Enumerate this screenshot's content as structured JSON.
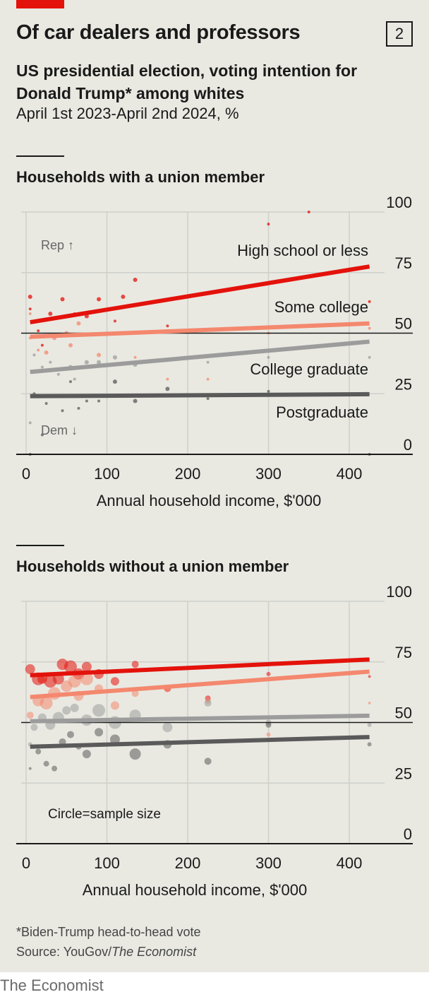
{
  "header": {
    "title": "Of car dealers and professors",
    "chart_number": "2",
    "subtitle": "US presidential election, voting intention for Donald Trump* among whites",
    "subnote": "April 1st 2023-April 2nd 2024, %"
  },
  "footer": {
    "footnote": "*Biden-Trump head-to-head vote",
    "source_prefix": "Source: YouGov/",
    "source_publication": "The Economist",
    "brand": "The Economist"
  },
  "colors": {
    "high_school": "#e3120b",
    "some_college": "#f4886e",
    "college_graduate": "#9c9c9c",
    "postgraduate": "#5a5a5a",
    "grid": "#d0d0cb",
    "axis": "#1a1a1a"
  },
  "chart_data": [
    {
      "type": "scatter",
      "title": "Households with a union member",
      "xlabel": "Annual household income, $'000",
      "ylabel": "",
      "xlim": [
        0,
        425
      ],
      "ylim": [
        0,
        100
      ],
      "x_ticks": [
        0,
        100,
        200,
        300,
        400
      ],
      "y_ticks": [
        0,
        25,
        50,
        75,
        100
      ],
      "y_tick_labels": [
        "0",
        "25",
        "50",
        "75",
        "100"
      ],
      "x_tick_labels": [
        "0",
        "100",
        "200",
        "300",
        "400"
      ],
      "reference_line": 50,
      "annotations": {
        "rep": "Rep ↑",
        "dem": "Dem ↓"
      },
      "series": [
        {
          "name": "High school or less",
          "color": "#e3120b",
          "trend": [
            [
              5,
              54.5
            ],
            [
              425,
              77.5
            ]
          ],
          "points": [
            [
              5,
              60,
              2
            ],
            [
              15,
              51,
              2
            ],
            [
              30,
              58,
              3
            ],
            [
              45,
              64,
              3
            ],
            [
              60,
              58,
              2
            ],
            [
              75,
              57,
              3
            ],
            [
              90,
              64,
              3
            ],
            [
              110,
              55,
              2
            ],
            [
              120,
              65,
              3
            ],
            [
              135,
              72,
              3
            ],
            [
              175,
              53,
              2
            ],
            [
              300,
              95,
              2
            ],
            [
              350,
              100,
              2
            ],
            [
              425,
              63,
              2
            ],
            [
              5,
              65,
              3
            ],
            [
              20,
              45,
              2
            ]
          ]
        },
        {
          "name": "Some college",
          "color": "#f4886e",
          "trend": [
            [
              5,
              48.5
            ],
            [
              425,
              54
            ]
          ],
          "points": [
            [
              5,
              48,
              2
            ],
            [
              15,
              43,
              2
            ],
            [
              25,
              42,
              3
            ],
            [
              35,
              48,
              3
            ],
            [
              50,
              50,
              3
            ],
            [
              55,
              45,
              3
            ],
            [
              65,
              54,
              3
            ],
            [
              90,
              41,
              3
            ],
            [
              135,
              40,
              2
            ],
            [
              175,
              31,
              2
            ],
            [
              225,
              31,
              2
            ],
            [
              300,
              50,
              2
            ],
            [
              425,
              52,
              2
            ],
            [
              5,
              58,
              2
            ]
          ]
        },
        {
          "name": "College graduate",
          "color": "#9c9c9c",
          "trend": [
            [
              5,
              34
            ],
            [
              425,
              46.5
            ]
          ],
          "points": [
            [
              10,
              41,
              2
            ],
            [
              20,
              36,
              2
            ],
            [
              30,
              38,
              2
            ],
            [
              40,
              33,
              2
            ],
            [
              55,
              36,
              3
            ],
            [
              60,
              31,
              2
            ],
            [
              75,
              38,
              3
            ],
            [
              90,
              38,
              3
            ],
            [
              110,
              40,
              3
            ],
            [
              135,
              37,
              3
            ],
            [
              175,
              39,
              3
            ],
            [
              225,
              38,
              2
            ],
            [
              300,
              40,
              2
            ],
            [
              425,
              40,
              2
            ],
            [
              5,
              13,
              2
            ]
          ]
        },
        {
          "name": "Postgraduate",
          "color": "#5a5a5a",
          "trend": [
            [
              5,
              24
            ],
            [
              425,
              24.8
            ]
          ],
          "points": [
            [
              10,
              25,
              2
            ],
            [
              25,
              21,
              2
            ],
            [
              40,
              24,
              2
            ],
            [
              55,
              30,
              2
            ],
            [
              65,
              19,
              2
            ],
            [
              75,
              22,
              2
            ],
            [
              90,
              22,
              2
            ],
            [
              110,
              30,
              3
            ],
            [
              135,
              22,
              3
            ],
            [
              175,
              27,
              3
            ],
            [
              225,
              23,
              2
            ],
            [
              300,
              26,
              2
            ],
            [
              425,
              0,
              2
            ],
            [
              5,
              0,
              2
            ],
            [
              45,
              18,
              2
            ],
            [
              20,
              8,
              2
            ]
          ]
        }
      ]
    },
    {
      "type": "scatter",
      "title": "Households without a union member",
      "xlabel": "Annual household income, $'000",
      "ylabel": "",
      "xlim": [
        0,
        425
      ],
      "ylim": [
        0,
        100
      ],
      "x_ticks": [
        0,
        100,
        200,
        300,
        400
      ],
      "y_ticks": [
        0,
        25,
        50,
        75,
        100
      ],
      "y_tick_labels": [
        "0",
        "25",
        "50",
        "75",
        "100"
      ],
      "x_tick_labels": [
        "0",
        "100",
        "200",
        "300",
        "400"
      ],
      "reference_line": 50,
      "annotations": {
        "size_note": "Circle=sample size"
      },
      "series": [
        {
          "name": "High school or less",
          "color": "#e3120b",
          "trend": [
            [
              5,
              69.5
            ],
            [
              425,
              76
            ]
          ],
          "points": [
            [
              5,
              72,
              7
            ],
            [
              15,
              68,
              9
            ],
            [
              30,
              67,
              9
            ],
            [
              45,
              74,
              8
            ],
            [
              55,
              73,
              9
            ],
            [
              65,
              70,
              8
            ],
            [
              75,
              73,
              7
            ],
            [
              90,
              70,
              7
            ],
            [
              110,
              67,
              6
            ],
            [
              135,
              74,
              5
            ],
            [
              175,
              64,
              5
            ],
            [
              225,
              60,
              4
            ],
            [
              300,
              70,
              3
            ],
            [
              425,
              69,
              2
            ],
            [
              20,
              68,
              7
            ],
            [
              40,
              68,
              8
            ]
          ]
        },
        {
          "name": "Some college",
          "color": "#f4886e",
          "trend": [
            [
              5,
              60.5
            ],
            [
              425,
              71
            ]
          ],
          "points": [
            [
              5,
              53,
              5
            ],
            [
              15,
              59,
              8
            ],
            [
              25,
              58,
              9
            ],
            [
              35,
              62,
              9
            ],
            [
              50,
              65,
              8
            ],
            [
              60,
              67,
              9
            ],
            [
              65,
              61,
              7
            ],
            [
              75,
              68,
              9
            ],
            [
              90,
              64,
              6
            ],
            [
              110,
              57,
              6
            ],
            [
              135,
              62,
              5
            ],
            [
              175,
              64,
              5
            ],
            [
              225,
              59,
              4
            ],
            [
              300,
              45,
              3
            ],
            [
              425,
              58,
              2
            ]
          ]
        },
        {
          "name": "College graduate",
          "color": "#9c9c9c",
          "trend": [
            [
              5,
              50.5
            ],
            [
              425,
              52.8
            ]
          ],
          "points": [
            [
              10,
              48,
              5
            ],
            [
              20,
              52,
              6
            ],
            [
              30,
              49,
              7
            ],
            [
              40,
              52,
              8
            ],
            [
              50,
              55,
              6
            ],
            [
              60,
              56,
              6
            ],
            [
              75,
              51,
              8
            ],
            [
              90,
              55,
              9
            ],
            [
              110,
              50,
              9
            ],
            [
              135,
              53,
              8
            ],
            [
              175,
              48,
              7
            ],
            [
              225,
              58,
              5
            ],
            [
              300,
              50,
              4
            ],
            [
              425,
              49,
              3
            ],
            [
              5,
              41,
              3
            ]
          ]
        },
        {
          "name": "Postgraduate",
          "color": "#5a5a5a",
          "trend": [
            [
              5,
              40
            ],
            [
              425,
              44
            ]
          ],
          "points": [
            [
              5,
              31,
              2
            ],
            [
              15,
              38,
              4
            ],
            [
              25,
              33,
              4
            ],
            [
              35,
              31,
              4
            ],
            [
              45,
              42,
              5
            ],
            [
              55,
              45,
              5
            ],
            [
              65,
              40,
              4
            ],
            [
              75,
              37,
              6
            ],
            [
              90,
              46,
              6
            ],
            [
              110,
              43,
              7
            ],
            [
              135,
              37,
              8
            ],
            [
              175,
              41,
              6
            ],
            [
              225,
              34,
              5
            ],
            [
              300,
              49,
              4
            ],
            [
              425,
              41,
              3
            ]
          ]
        }
      ]
    }
  ]
}
